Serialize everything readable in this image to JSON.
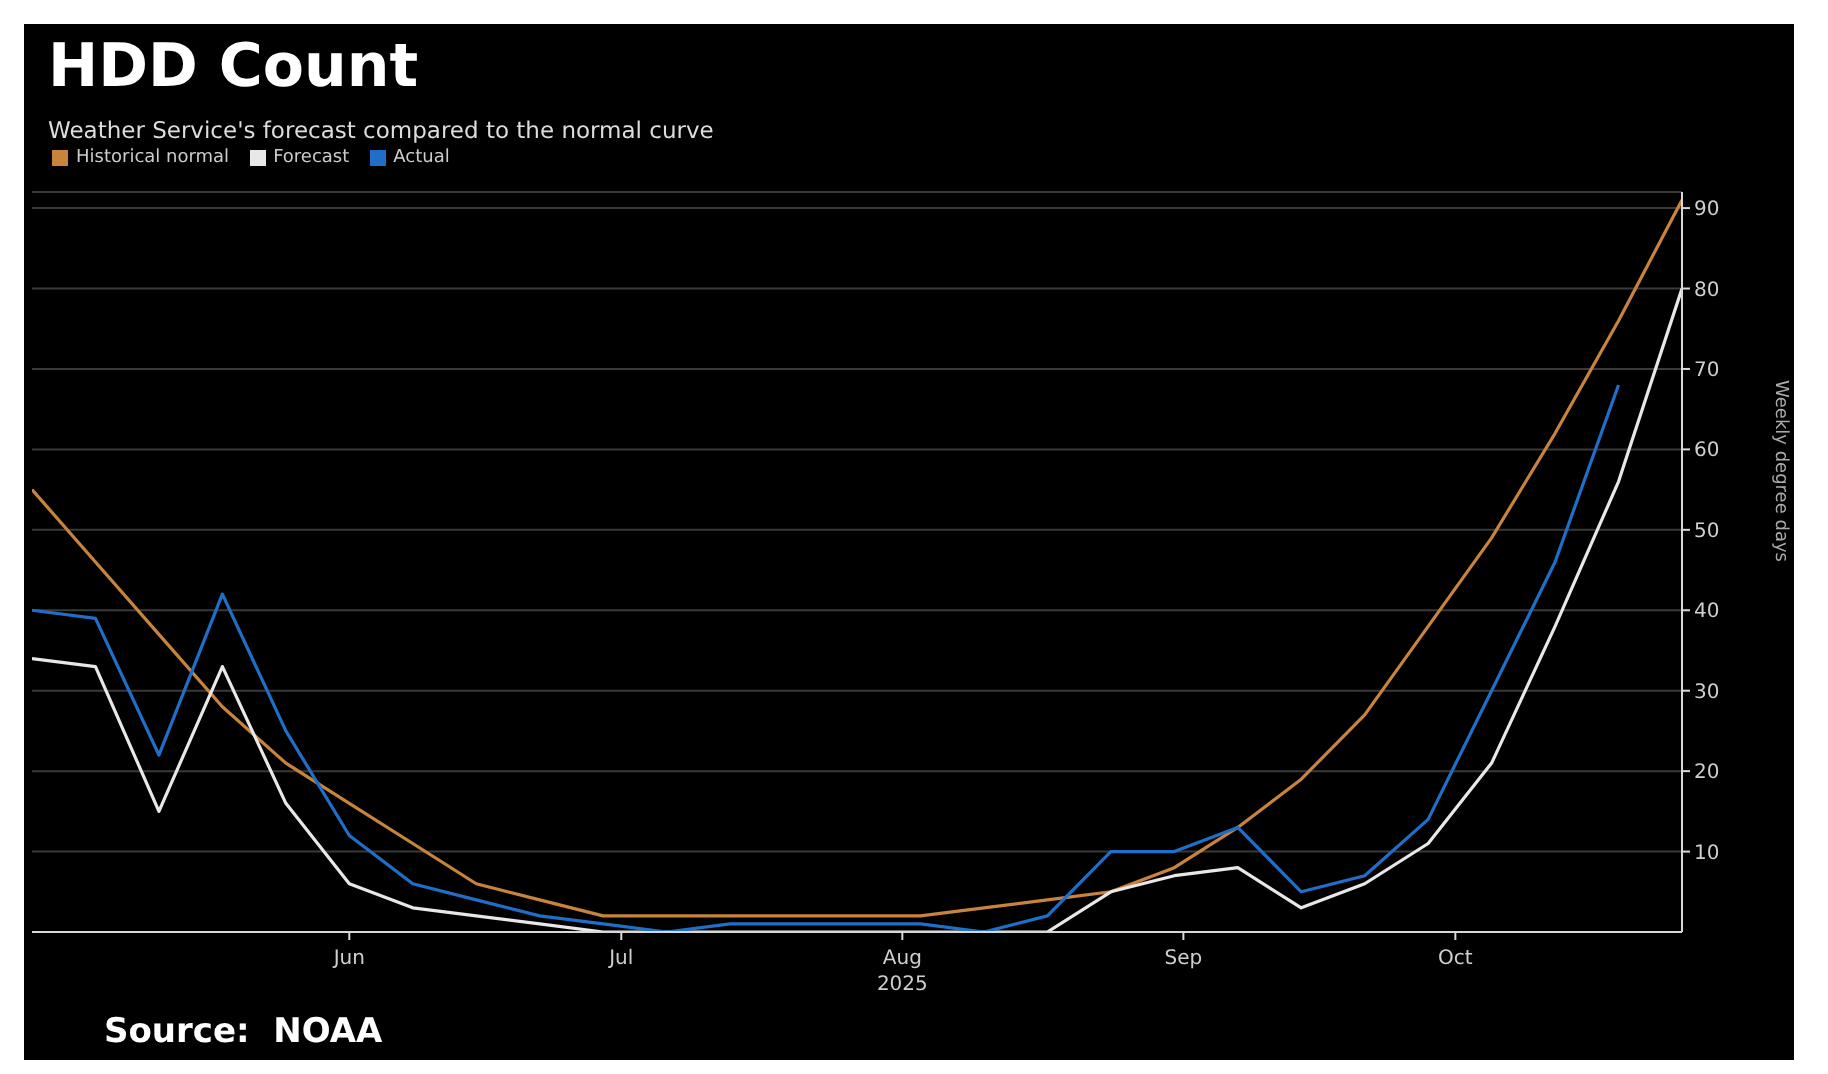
{
  "chart_data": {
    "type": "line",
    "title": "HDD Count",
    "subtitle": "Weather Service's forecast compared to the normal curve",
    "ylabel": "Weekly degree days",
    "annotations": [
      "Source:  NOAA"
    ],
    "x": [
      "2025-04-27",
      "2025-05-04",
      "2025-05-11",
      "2025-05-18",
      "2025-05-25",
      "2025-06-01",
      "2025-06-08",
      "2025-06-15",
      "2025-06-22",
      "2025-06-29",
      "2025-07-06",
      "2025-07-13",
      "2025-07-20",
      "2025-07-27",
      "2025-08-03",
      "2025-08-10",
      "2025-08-17",
      "2025-08-24",
      "2025-08-31",
      "2025-09-07",
      "2025-09-14",
      "2025-09-21",
      "2025-09-28",
      "2025-10-05",
      "2025-10-12",
      "2025-10-19",
      "2025-10-26"
    ],
    "series": [
      {
        "name": "Historical normal",
        "color": "#c8833c",
        "values": [
          55,
          46,
          37,
          28,
          21,
          16,
          11,
          6,
          4,
          2,
          2,
          2,
          2,
          2,
          2,
          3,
          4,
          5,
          8,
          13,
          19,
          27,
          38,
          49,
          62,
          76,
          91
        ]
      },
      {
        "name": "Forecast",
        "color": "#e8e8e8",
        "values": [
          34,
          33,
          15,
          33,
          16,
          6,
          3,
          2,
          1,
          0,
          0,
          0,
          0,
          0,
          0,
          0,
          0,
          5,
          7,
          8,
          3,
          6,
          11,
          21,
          38,
          56,
          80
        ]
      },
      {
        "name": "Actual",
        "color": "#1f6fc8",
        "values": [
          40,
          39,
          22,
          42,
          25,
          12,
          6,
          4,
          2,
          1,
          0,
          1,
          1,
          1,
          1,
          0,
          2,
          10,
          10,
          13,
          5,
          7,
          14,
          30,
          46,
          68,
          null
        ]
      }
    ],
    "xlim": [
      "2025-04-27",
      "2025-10-26"
    ],
    "xticks": [
      {
        "value": "2025-06-01",
        "label": "Jun"
      },
      {
        "value": "2025-07-01",
        "label": "Jul"
      },
      {
        "value": "2025-08-01",
        "label": "Aug\n2025"
      },
      {
        "value": "2025-09-01",
        "label": "Sep"
      },
      {
        "value": "2025-10-01",
        "label": "Oct"
      }
    ],
    "ylim": [
      0,
      92
    ],
    "yticks": [
      10,
      20,
      30,
      40,
      50,
      60,
      70,
      80,
      90
    ],
    "grid": "y",
    "legend": "top left",
    "line_style": "solid",
    "marker": "none"
  }
}
